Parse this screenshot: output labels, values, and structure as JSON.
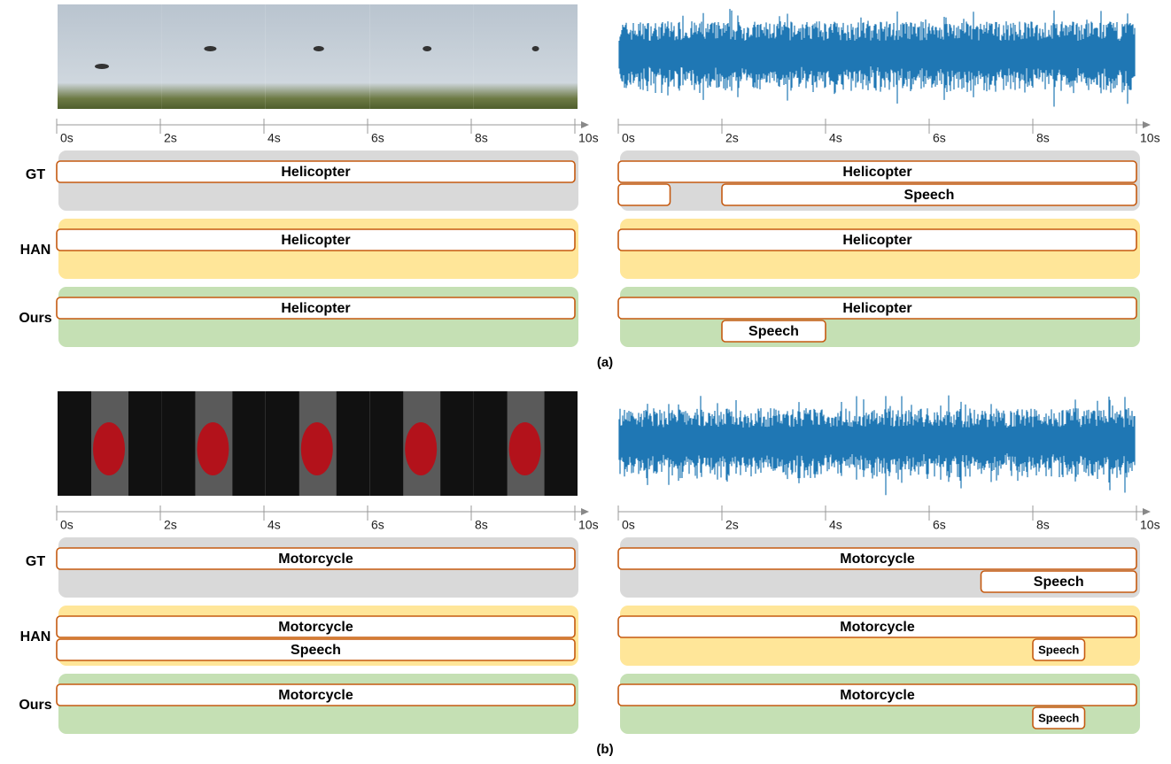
{
  "row_labels": [
    "GT",
    "HAN",
    "Ours"
  ],
  "time_axis": {
    "xlim": [
      0,
      10
    ],
    "ticks": [
      {
        "value": 0,
        "label": "0s"
      },
      {
        "value": 2,
        "label": "2s"
      },
      {
        "value": 4,
        "label": "4s"
      },
      {
        "value": 6,
        "label": "6s"
      },
      {
        "value": 8,
        "label": "8s"
      },
      {
        "value": 10,
        "label": "10s"
      }
    ]
  },
  "panels": [
    {
      "caption": "(a)",
      "video": {
        "rows": [
          [
            {
              "label": "Helicopter",
              "start": 0,
              "end": 10
            }
          ],
          [
            {
              "label": "Helicopter",
              "start": 0,
              "end": 10
            }
          ],
          [
            {
              "label": "Helicopter",
              "start": 0,
              "end": 10
            }
          ]
        ]
      },
      "audio": {
        "rows": [
          [
            {
              "label": "Helicopter",
              "start": 0,
              "end": 10
            },
            {
              "label": null,
              "start": 0,
              "end": 1
            },
            {
              "label": "Speech",
              "start": 2,
              "end": 10
            }
          ],
          [
            {
              "label": "Helicopter",
              "start": 0,
              "end": 10
            }
          ],
          [
            {
              "label": "Helicopter",
              "start": 0,
              "end": 10
            },
            {
              "label": "Speech",
              "start": 2,
              "end": 4
            }
          ]
        ]
      }
    },
    {
      "caption": "(b)",
      "video": {
        "rows": [
          [
            {
              "label": "Motorcycle",
              "start": 0,
              "end": 10
            }
          ],
          [
            {
              "label": "Motorcycle",
              "start": 0,
              "end": 10
            },
            {
              "label": "Speech",
              "start": 0,
              "end": 10
            }
          ],
          [
            {
              "label": "Motorcycle",
              "start": 0,
              "end": 10
            }
          ]
        ]
      },
      "audio": {
        "rows": [
          [
            {
              "label": "Motorcycle",
              "start": 0,
              "end": 10
            },
            {
              "label": "Speech",
              "start": 7,
              "end": 10
            }
          ],
          [
            {
              "label": "Motorcycle",
              "start": 0,
              "end": 10
            },
            {
              "label": "Speech",
              "start": 8,
              "end": 9
            }
          ],
          [
            {
              "label": "Motorcycle",
              "start": 0,
              "end": 10
            },
            {
              "label": "Speech",
              "start": 8,
              "end": 9
            }
          ]
        ]
      }
    }
  ]
}
